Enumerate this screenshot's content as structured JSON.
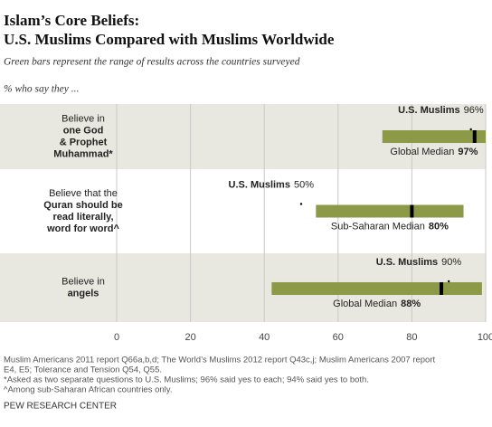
{
  "chart_data": {
    "type": "range",
    "title": [
      "Islam’s Core Beliefs:",
      "U.S. Muslims Compared with Muslims Worldwide"
    ],
    "subtitle": "Green bars represent the range of results across the countries surveyed",
    "unit_note": "% who say they ...",
    "categories": [
      [
        "Believe in",
        "one God",
        "& Prophet",
        "Muhammad*"
      ],
      [
        "Believe that the",
        "Quran should be",
        "read literally,",
        "word for word^"
      ],
      [
        "Believe in",
        "angels"
      ]
    ],
    "bold_from_line": 1,
    "range_low": [
      72,
      54,
      42
    ],
    "range_high": [
      100,
      94,
      99
    ],
    "range_color": "#8c9a48",
    "us": {
      "name": "U.S. Muslims",
      "values": [
        96,
        50,
        90
      ],
      "value_labels": [
        "96%",
        "50%",
        "90%"
      ]
    },
    "median": {
      "names": [
        "Global Median",
        "Sub-Saharan Median",
        "Global Median"
      ],
      "values": [
        97,
        80,
        88
      ],
      "value_labels": [
        "97%",
        "80%",
        "88%"
      ],
      "color": "#000000"
    },
    "xlim": [
      0,
      100
    ],
    "xticks": [
      0,
      20,
      40,
      60,
      80,
      100
    ],
    "grid": true,
    "band_color": "#e8e8e0",
    "footnotes": [
      "Muslim Americans 2011 report Q66a,b,d; The World’s Muslims 2012 report Q43c,j; Muslim Americans 2007 report",
      "E4, E5; Tolerance and Tension Q54, Q55.",
      "*Asked as two separate questions to U.S. Muslims; 96% said yes to each; 94% said yes to both.",
      "^Among sub-Saharan African countries only."
    ],
    "source": "PEW RESEARCH CENTER"
  }
}
